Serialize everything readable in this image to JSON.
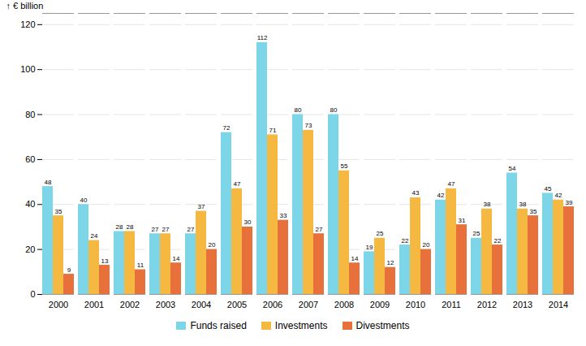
{
  "chart_data": {
    "type": "bar",
    "ylabel": "€ billion",
    "categories": [
      "2000",
      "2001",
      "2002",
      "2003",
      "2004",
      "2005",
      "2006",
      "2007",
      "2008",
      "2009",
      "2010",
      "2011",
      "2012",
      "2013",
      "2014"
    ],
    "series": [
      {
        "name": "Funds raised",
        "color": "#7dd6e8",
        "values": [
          48,
          40,
          28,
          27,
          27,
          72,
          112,
          80,
          80,
          19,
          22,
          42,
          25,
          54,
          45
        ]
      },
      {
        "name": "Investments",
        "color": "#f5b942",
        "values": [
          35,
          24,
          28,
          27,
          37,
          47,
          71,
          73,
          55,
          25,
          43,
          47,
          38,
          38,
          42
        ]
      },
      {
        "name": "Divestments",
        "color": "#e8703a",
        "values": [
          9,
          13,
          11,
          14,
          20,
          30,
          33,
          27,
          14,
          12,
          20,
          31,
          22,
          35,
          39
        ]
      }
    ],
    "ylim": [
      0,
      125
    ],
    "yticks": [
      0,
      20,
      40,
      60,
      80,
      100,
      120
    ],
    "grid": true,
    "data_labels": true,
    "legend": "bottom"
  }
}
